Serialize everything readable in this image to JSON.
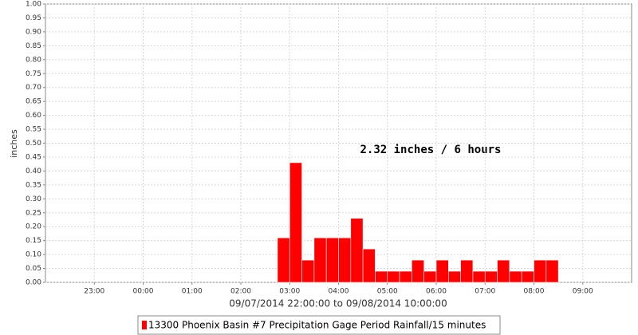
{
  "chart_data": {
    "type": "bar",
    "y_label": "inches",
    "x_label": "09/07/2014 22:00:00 to 09/08/2014 10:00:00",
    "annotation": "2.32 inches / 6 hours",
    "series": [
      {
        "name": "13300 Phoenix Basin #7 Precipitation Gage Period Rainfall/15 minutes",
        "color": "#ff0000",
        "bins": [
          26.75,
          27,
          27.25,
          27.5,
          27.75,
          28,
          28.25,
          28.5,
          28.75,
          29,
          29.25,
          29.5,
          29.75,
          30,
          30.25,
          30.5,
          30.75,
          31,
          31.25,
          31.5,
          31.75,
          32,
          32.25,
          32.5
        ],
        "values": [
          0.16,
          0.43,
          0.08,
          0.16,
          0.16,
          0.16,
          0.23,
          0.12,
          0.04,
          0.04,
          0.04,
          0.08,
          0.04,
          0.08,
          0.04,
          0.08,
          0.04,
          0.04,
          0.08,
          0.04,
          0.04,
          0.08,
          0.08
        ]
      }
    ],
    "xlim": [
      22,
      34
    ],
    "xticks": [
      {
        "value": 23,
        "label": "23:00"
      },
      {
        "value": 24,
        "label": "00:00"
      },
      {
        "value": 25,
        "label": "01:00"
      },
      {
        "value": 26,
        "label": "02:00"
      },
      {
        "value": 27,
        "label": "03:00"
      },
      {
        "value": 28,
        "label": "04:00"
      },
      {
        "value": 29,
        "label": "05:00"
      },
      {
        "value": 30,
        "label": "06:00"
      },
      {
        "value": 31,
        "label": "07:00"
      },
      {
        "value": 32,
        "label": "08:00"
      },
      {
        "value": 33,
        "label": "09:00"
      }
    ],
    "ylim": [
      0,
      1
    ],
    "yticks": [
      {
        "value": 0,
        "label": "0.00"
      },
      {
        "value": 0.05,
        "label": "0.05"
      },
      {
        "value": 0.1,
        "label": "0.10"
      },
      {
        "value": 0.15,
        "label": "0.15"
      },
      {
        "value": 0.2,
        "label": "0.20"
      },
      {
        "value": 0.25,
        "label": "0.25"
      },
      {
        "value": 0.3,
        "label": "0.30"
      },
      {
        "value": 0.35,
        "label": "0.35"
      },
      {
        "value": 0.4,
        "label": "0.40"
      },
      {
        "value": 0.45,
        "label": "0.45"
      },
      {
        "value": 0.5,
        "label": "0.50"
      },
      {
        "value": 0.55,
        "label": "0.55"
      },
      {
        "value": 0.6,
        "label": "0.60"
      },
      {
        "value": 0.65,
        "label": "0.65"
      },
      {
        "value": 0.7,
        "label": "0.70"
      },
      {
        "value": 0.75,
        "label": "0.75"
      },
      {
        "value": 0.8,
        "label": "0.80"
      },
      {
        "value": 0.85,
        "label": "0.85"
      },
      {
        "value": 0.9,
        "label": "0.90"
      },
      {
        "value": 0.95,
        "label": "0.95"
      },
      {
        "value": 1,
        "label": "1.00"
      }
    ],
    "grid": true
  }
}
